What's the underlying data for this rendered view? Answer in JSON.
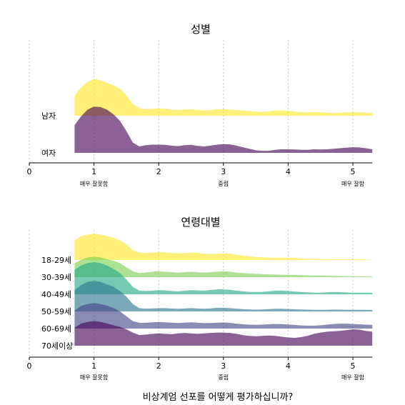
{
  "chart_data": [
    {
      "type": "area",
      "subtype": "ridgeline",
      "title": "성별",
      "xlim": [
        0,
        5.3
      ],
      "xticks": [
        0,
        1,
        2,
        3,
        4,
        5
      ],
      "anchor_labels": [
        {
          "x": 1,
          "label": "매우 잘못함"
        },
        {
          "x": 3,
          "label": "중립"
        },
        {
          "x": 5,
          "label": "매우 잘함"
        }
      ],
      "grid": true,
      "x": [
        0.7,
        0.8,
        0.9,
        1.0,
        1.1,
        1.2,
        1.3,
        1.4,
        1.5,
        1.6,
        1.7,
        1.8,
        1.9,
        2.0,
        2.1,
        2.2,
        2.3,
        2.4,
        2.5,
        2.6,
        2.7,
        2.8,
        2.9,
        3.0,
        3.1,
        3.2,
        3.3,
        3.4,
        3.5,
        3.6,
        3.7,
        3.8,
        3.9,
        4.0,
        4.1,
        4.2,
        4.3,
        4.4,
        4.5,
        4.6,
        4.7,
        4.8,
        4.9,
        5.0,
        5.1,
        5.2,
        5.3
      ],
      "series": [
        {
          "name": "남자",
          "color": "#fde725",
          "values": [
            0.77,
            1.1,
            1.32,
            1.42,
            1.38,
            1.28,
            1.18,
            1.05,
            0.8,
            0.45,
            0.3,
            0.25,
            0.27,
            0.28,
            0.27,
            0.24,
            0.22,
            0.24,
            0.25,
            0.22,
            0.2,
            0.22,
            0.25,
            0.25,
            0.24,
            0.22,
            0.2,
            0.18,
            0.16,
            0.15,
            0.17,
            0.2,
            0.2,
            0.19,
            0.16,
            0.13,
            0.13,
            0.14,
            0.13,
            0.12,
            0.1,
            0.11,
            0.13,
            0.14,
            0.13,
            0.12,
            0.1
          ]
        },
        {
          "name": "여자",
          "color": "#440154",
          "values": [
            1.08,
            1.42,
            1.68,
            1.8,
            1.78,
            1.68,
            1.5,
            1.25,
            0.85,
            0.4,
            0.25,
            0.3,
            0.32,
            0.32,
            0.31,
            0.28,
            0.26,
            0.3,
            0.31,
            0.27,
            0.25,
            0.28,
            0.32,
            0.34,
            0.33,
            0.28,
            0.22,
            0.16,
            0.1,
            0.08,
            0.08,
            0.12,
            0.14,
            0.14,
            0.13,
            0.12,
            0.12,
            0.14,
            0.13,
            0.14,
            0.16,
            0.18,
            0.2,
            0.22,
            0.21,
            0.18,
            0.14
          ]
        }
      ]
    },
    {
      "type": "area",
      "subtype": "ridgeline",
      "title": "연령대별",
      "xlim": [
        0,
        5.3
      ],
      "xticks": [
        0,
        1,
        2,
        3,
        4,
        5
      ],
      "anchor_labels": [
        {
          "x": 1,
          "label": "매우 잘못함"
        },
        {
          "x": 3,
          "label": "중립"
        },
        {
          "x": 5,
          "label": "매우 잘함"
        }
      ],
      "grid": true,
      "x": [
        0.7,
        0.8,
        0.9,
        1.0,
        1.1,
        1.2,
        1.3,
        1.4,
        1.5,
        1.6,
        1.7,
        1.8,
        1.9,
        2.0,
        2.1,
        2.2,
        2.3,
        2.4,
        2.5,
        2.6,
        2.7,
        2.8,
        2.9,
        3.0,
        3.1,
        3.2,
        3.3,
        3.4,
        3.5,
        3.6,
        3.7,
        3.8,
        3.9,
        4.0,
        4.1,
        4.2,
        4.3,
        4.4,
        4.5,
        4.6,
        4.7,
        4.8,
        4.9,
        5.0,
        5.1,
        5.2,
        5.3
      ],
      "series": [
        {
          "name": "18-29세",
          "color": "#fde725",
          "values": [
            1.2,
            1.45,
            1.55,
            1.6,
            1.55,
            1.45,
            1.35,
            1.2,
            0.95,
            0.6,
            0.45,
            0.42,
            0.45,
            0.48,
            0.46,
            0.42,
            0.4,
            0.42,
            0.45,
            0.42,
            0.38,
            0.36,
            0.38,
            0.4,
            0.38,
            0.32,
            0.26,
            0.22,
            0.18,
            0.16,
            0.15,
            0.14,
            0.14,
            0.13,
            0.12,
            0.1,
            0.08,
            0.07,
            0.06,
            0.05,
            0.05,
            0.04,
            0.04,
            0.04,
            0.03,
            0.03,
            0.02
          ]
        },
        {
          "name": "30-39세",
          "color": "#7ad151",
          "values": [
            0.85,
            1.05,
            1.2,
            1.25,
            1.2,
            1.1,
            1.0,
            0.85,
            0.6,
            0.35,
            0.25,
            0.28,
            0.33,
            0.35,
            0.33,
            0.3,
            0.27,
            0.3,
            0.33,
            0.3,
            0.28,
            0.3,
            0.33,
            0.35,
            0.33,
            0.28,
            0.25,
            0.22,
            0.2,
            0.18,
            0.17,
            0.16,
            0.15,
            0.14,
            0.13,
            0.12,
            0.11,
            0.1,
            0.1,
            0.09,
            0.08,
            0.07,
            0.06,
            0.05,
            0.05,
            0.04,
            0.04
          ]
        },
        {
          "name": "40-49세",
          "color": "#22a884",
          "values": [
            1.5,
            1.75,
            1.9,
            1.95,
            1.9,
            1.75,
            1.55,
            1.3,
            0.9,
            0.45,
            0.22,
            0.2,
            0.22,
            0.25,
            0.24,
            0.2,
            0.18,
            0.22,
            0.25,
            0.24,
            0.22,
            0.26,
            0.3,
            0.3,
            0.27,
            0.22,
            0.18,
            0.15,
            0.14,
            0.15,
            0.18,
            0.22,
            0.22,
            0.2,
            0.17,
            0.14,
            0.12,
            0.1,
            0.1,
            0.12,
            0.14,
            0.13,
            0.11,
            0.1,
            0.1,
            0.1,
            0.09
          ]
        },
        {
          "name": "50-59세",
          "color": "#2a788e",
          "values": [
            1.3,
            1.6,
            1.8,
            1.85,
            1.8,
            1.65,
            1.5,
            1.25,
            0.9,
            0.45,
            0.2,
            0.17,
            0.18,
            0.2,
            0.2,
            0.18,
            0.16,
            0.18,
            0.2,
            0.18,
            0.16,
            0.18,
            0.22,
            0.22,
            0.2,
            0.17,
            0.14,
            0.12,
            0.11,
            0.12,
            0.14,
            0.16,
            0.16,
            0.15,
            0.13,
            0.12,
            0.11,
            0.1,
            0.1,
            0.1,
            0.11,
            0.11,
            0.1,
            0.1,
            0.1,
            0.1,
            0.09
          ]
        },
        {
          "name": "60-69세",
          "color": "#414487",
          "values": [
            1.1,
            1.38,
            1.5,
            1.55,
            1.5,
            1.4,
            1.25,
            1.05,
            0.75,
            0.45,
            0.35,
            0.35,
            0.38,
            0.4,
            0.38,
            0.36,
            0.34,
            0.36,
            0.38,
            0.36,
            0.33,
            0.34,
            0.36,
            0.37,
            0.35,
            0.3,
            0.26,
            0.24,
            0.23,
            0.24,
            0.26,
            0.28,
            0.27,
            0.25,
            0.22,
            0.19,
            0.18,
            0.18,
            0.2,
            0.24,
            0.28,
            0.3,
            0.3,
            0.28,
            0.26,
            0.24,
            0.22
          ]
        },
        {
          "name": "70세이상",
          "color": "#440154",
          "values": [
            1.1,
            1.35,
            1.45,
            1.5,
            1.45,
            1.35,
            1.25,
            1.15,
            1.0,
            0.8,
            0.65,
            0.68,
            0.72,
            0.75,
            0.72,
            0.7,
            0.75,
            0.78,
            0.75,
            0.72,
            0.75,
            0.78,
            0.8,
            0.8,
            0.78,
            0.72,
            0.65,
            0.6,
            0.58,
            0.6,
            0.62,
            0.6,
            0.55,
            0.5,
            0.48,
            0.52,
            0.6,
            0.72,
            0.8,
            0.85,
            0.88,
            0.9,
            0.95,
            1.0,
            0.98,
            0.9,
            0.85
          ]
        }
      ]
    }
  ],
  "x_axis_title": "비상계엄 선포를 어떻게 평가하십니까?"
}
